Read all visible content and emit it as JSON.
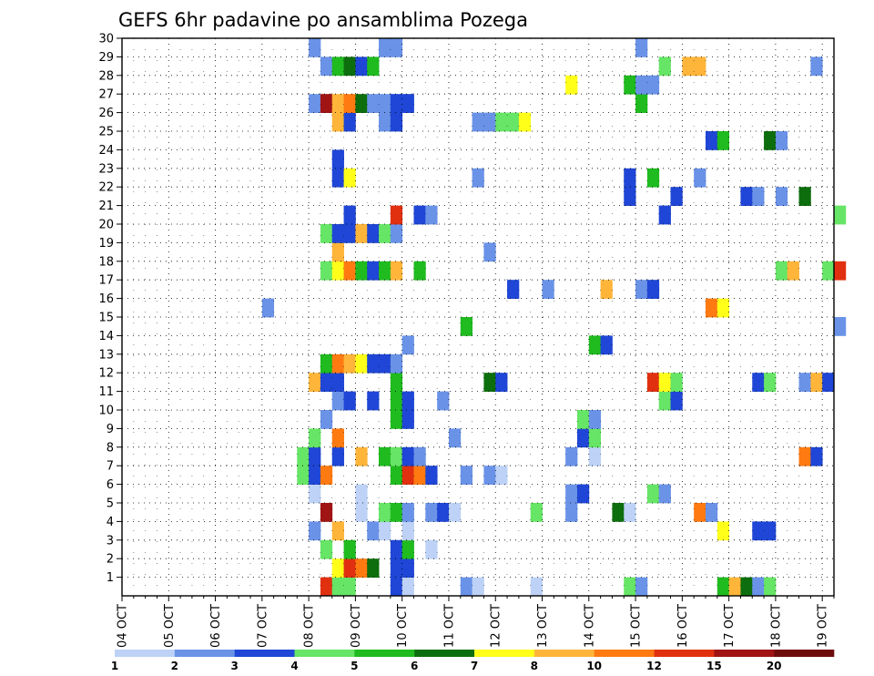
{
  "chart_data": {
    "type": "heatmap",
    "title": "GEFS 6hr padavine po ansamblima Pozega",
    "y_ticks": [
      "1",
      "2",
      "3",
      "4",
      "5",
      "6",
      "7",
      "8",
      "9",
      "10",
      "11",
      "12",
      "13",
      "14",
      "15",
      "16",
      "17",
      "18",
      "19",
      "20",
      "21",
      "22",
      "23",
      "24",
      "25",
      "26",
      "27",
      "28",
      "29",
      "30"
    ],
    "x_ticks": [
      "04 OCT",
      "05 OCT",
      "06 OCT",
      "07 OCT",
      "08 OCT",
      "09 OCT",
      "10 OCT",
      "11 OCT",
      "12 OCT",
      "13 OCT",
      "14 OCT",
      "15 OCT",
      "16 OCT",
      "17 OCT",
      "18 OCT",
      "19 OCT"
    ],
    "x_range": [
      "04 OCT 00h",
      "19 OCT 06h"
    ],
    "time_step_hours": 6,
    "y_range": [
      0,
      30
    ],
    "grid": "dotted",
    "legend_placement": "bottom",
    "colorbar": {
      "ticks": [
        "1",
        "2",
        "3",
        "4",
        "5",
        "6",
        "7",
        "8",
        "10",
        "12",
        "15",
        "20"
      ],
      "colors": [
        "#bdd2f6",
        "#6a93e8",
        "#1f46d6",
        "#66e566",
        "#1fbb1f",
        "#0d6e0d",
        "#ffff1a",
        "#ffb53a",
        "#ff7a10",
        "#e13010",
        "#a01414",
        "#6e0c0c"
      ]
    },
    "cells": [
      [
        1,
        "10-08 06h",
        "red"
      ],
      [
        1,
        "10-08 12h",
        "light-green"
      ],
      [
        1,
        "10-08 18h",
        "light-green"
      ],
      [
        1,
        "10-09 18h",
        "blue"
      ],
      [
        1,
        "10-10 00h",
        "light-blue"
      ],
      [
        1,
        "10-11 06h",
        "medium-blue"
      ],
      [
        1,
        "10-11 12h",
        "light-blue"
      ],
      [
        1,
        "10-12 18h",
        "light-blue"
      ],
      [
        1,
        "10-14 18h",
        "light-green"
      ],
      [
        1,
        "10-15 00h",
        "medium-blue"
      ],
      [
        1,
        "10-16 18h",
        "green"
      ],
      [
        1,
        "10-17 00h",
        "orange-yellow"
      ],
      [
        1,
        "10-17 06h",
        "dark-green"
      ],
      [
        1,
        "10-17 12h",
        "medium-blue"
      ],
      [
        1,
        "10-17 18h",
        "light-green"
      ],
      [
        2,
        "10-08 12h",
        "yellow"
      ],
      [
        2,
        "10-08 18h",
        "red"
      ],
      [
        2,
        "10-09 00h",
        "orange"
      ],
      [
        2,
        "10-09 06h",
        "dark-green"
      ],
      [
        2,
        "10-09 18h",
        "blue"
      ],
      [
        2,
        "10-10 00h",
        "blue"
      ],
      [
        3,
        "10-08 06h",
        "light-green"
      ],
      [
        3,
        "10-08 18h",
        "green"
      ],
      [
        3,
        "10-09 18h",
        "blue"
      ],
      [
        3,
        "10-10 00h",
        "green"
      ],
      [
        3,
        "10-10 12h",
        "light-blue"
      ],
      [
        4,
        "10-08 00h",
        "medium-blue"
      ],
      [
        4,
        "10-08 12h",
        "orange-yellow"
      ],
      [
        4,
        "10-09 06h",
        "medium-blue"
      ],
      [
        4,
        "10-09 12h",
        "light-blue"
      ],
      [
        4,
        "10-10 00h",
        "light-blue"
      ],
      [
        4,
        "10-16 18h",
        "yellow"
      ],
      [
        4,
        "10-17 12h",
        "blue"
      ],
      [
        4,
        "10-17 18h",
        "blue"
      ],
      [
        5,
        "10-08 06h",
        "dark-red"
      ],
      [
        5,
        "10-09 00h",
        "light-blue"
      ],
      [
        5,
        "10-09 12h",
        "light-green"
      ],
      [
        5,
        "10-09 18h",
        "green"
      ],
      [
        5,
        "10-10 00h",
        "medium-blue"
      ],
      [
        5,
        "10-10 12h",
        "medium-blue"
      ],
      [
        5,
        "10-10 18h",
        "blue"
      ],
      [
        5,
        "10-11 00h",
        "light-blue"
      ],
      [
        5,
        "10-12 18h",
        "light-green"
      ],
      [
        5,
        "10-13 12h",
        "medium-blue"
      ],
      [
        5,
        "10-14 12h",
        "dark-green"
      ],
      [
        5,
        "10-14 18h",
        "light-blue"
      ],
      [
        5,
        "10-16 06h",
        "orange"
      ],
      [
        5,
        "10-16 12h",
        "medium-blue"
      ],
      [
        6,
        "10-08 00h",
        "light-blue"
      ],
      [
        6,
        "10-09 00h",
        "light-blue"
      ],
      [
        6,
        "10-13 12h",
        "medium-blue"
      ],
      [
        6,
        "10-13 18h",
        "blue"
      ],
      [
        6,
        "10-15 06h",
        "light-green"
      ],
      [
        6,
        "10-15 12h",
        "medium-blue"
      ],
      [
        7,
        "10-07 18h",
        "light-green"
      ],
      [
        7,
        "10-08 00h",
        "blue"
      ],
      [
        7,
        "10-08 06h",
        "orange"
      ],
      [
        7,
        "10-09 18h",
        "green"
      ],
      [
        7,
        "10-10 00h",
        "red"
      ],
      [
        7,
        "10-10 06h",
        "orange"
      ],
      [
        7,
        "10-10 12h",
        "blue"
      ],
      [
        7,
        "10-11 06h",
        "medium-blue"
      ],
      [
        7,
        "10-11 18h",
        "medium-blue"
      ],
      [
        7,
        "10-12 00h",
        "light-blue"
      ],
      [
        8,
        "10-07 18h",
        "light-green"
      ],
      [
        8,
        "10-08 00h",
        "blue"
      ],
      [
        8,
        "10-08 12h",
        "blue"
      ],
      [
        8,
        "10-09 00h",
        "orange-yellow"
      ],
      [
        8,
        "10-09 12h",
        "green"
      ],
      [
        8,
        "10-09 18h",
        "light-green"
      ],
      [
        8,
        "10-10 00h",
        "blue"
      ],
      [
        8,
        "10-10 06h",
        "medium-blue"
      ],
      [
        8,
        "10-13 12h",
        "medium-blue"
      ],
      [
        8,
        "10-14 00h",
        "light-blue"
      ],
      [
        8,
        "10-18 12h",
        "orange"
      ],
      [
        8,
        "10-18 18h",
        "blue"
      ],
      [
        9,
        "10-08 00h",
        "light-green"
      ],
      [
        9,
        "10-08 12h",
        "orange"
      ],
      [
        9,
        "10-11 00h",
        "medium-blue"
      ],
      [
        9,
        "10-13 18h",
        "blue"
      ],
      [
        9,
        "10-14 00h",
        "light-green"
      ],
      [
        10,
        "10-08 06h",
        "medium-blue"
      ],
      [
        10,
        "10-09 18h",
        "green"
      ],
      [
        10,
        "10-10 00h",
        "blue"
      ],
      [
        10,
        "10-13 18h",
        "light-green"
      ],
      [
        10,
        "10-14 00h",
        "medium-blue"
      ],
      [
        11,
        "10-08 12h",
        "medium-blue"
      ],
      [
        11,
        "10-08 18h",
        "blue"
      ],
      [
        11,
        "10-09 06h",
        "blue"
      ],
      [
        11,
        "10-09 18h",
        "green"
      ],
      [
        11,
        "10-10 00h",
        "blue"
      ],
      [
        11,
        "10-10 18h",
        "medium-blue"
      ],
      [
        11,
        "10-15 12h",
        "light-green"
      ],
      [
        11,
        "10-15 18h",
        "blue"
      ],
      [
        12,
        "10-08 00h",
        "orange-yellow"
      ],
      [
        12,
        "10-08 06h",
        "blue"
      ],
      [
        12,
        "10-08 12h",
        "blue"
      ],
      [
        12,
        "10-09 18h",
        "green"
      ],
      [
        12,
        "10-11 18h",
        "dark-green"
      ],
      [
        12,
        "10-12 00h",
        "blue"
      ],
      [
        12,
        "10-15 06h",
        "red"
      ],
      [
        12,
        "10-15 12h",
        "yellow"
      ],
      [
        12,
        "10-15 18h",
        "light-green"
      ],
      [
        12,
        "10-17 12h",
        "blue"
      ],
      [
        12,
        "10-17 18h",
        "light-green"
      ],
      [
        12,
        "10-18 12h",
        "medium-blue"
      ],
      [
        12,
        "10-18 18h",
        "orange-yellow"
      ],
      [
        12,
        "10-19 00h",
        "blue"
      ],
      [
        13,
        "10-08 06h",
        "green"
      ],
      [
        13,
        "10-08 12h",
        "orange"
      ],
      [
        13,
        "10-08 18h",
        "orange-yellow"
      ],
      [
        13,
        "10-09 00h",
        "yellow"
      ],
      [
        13,
        "10-09 06h",
        "blue"
      ],
      [
        13,
        "10-09 12h",
        "blue"
      ],
      [
        13,
        "10-09 18h",
        "medium-blue"
      ],
      [
        14,
        "10-10 00h",
        "medium-blue"
      ],
      [
        14,
        "10-14 00h",
        "green"
      ],
      [
        14,
        "10-14 06h",
        "blue"
      ],
      [
        15,
        "10-11 06h",
        "green"
      ],
      [
        15,
        "10-19 06h",
        "medium-blue"
      ],
      [
        16,
        "10-07 00h",
        "medium-blue"
      ],
      [
        16,
        "10-16 12h",
        "orange"
      ],
      [
        16,
        "10-16 18h",
        "yellow"
      ],
      [
        17,
        "10-12 06h",
        "blue"
      ],
      [
        17,
        "10-13 00h",
        "medium-blue"
      ],
      [
        17,
        "10-14 06h",
        "orange-yellow"
      ],
      [
        17,
        "10-15 00h",
        "medium-blue"
      ],
      [
        17,
        "10-15 06h",
        "blue"
      ],
      [
        18,
        "10-08 06h",
        "light-green"
      ],
      [
        18,
        "10-08 12h",
        "yellow"
      ],
      [
        18,
        "10-08 18h",
        "orange"
      ],
      [
        18,
        "10-09 00h",
        "green"
      ],
      [
        18,
        "10-09 06h",
        "blue"
      ],
      [
        18,
        "10-09 12h",
        "green"
      ],
      [
        18,
        "10-09 18h",
        "orange-yellow"
      ],
      [
        18,
        "10-10 06h",
        "green"
      ],
      [
        18,
        "10-18 00h",
        "light-green"
      ],
      [
        18,
        "10-18 06h",
        "orange-yellow"
      ],
      [
        18,
        "10-19 00h",
        "light-green"
      ],
      [
        18,
        "10-19 06h",
        "red"
      ],
      [
        19,
        "10-08 12h",
        "orange-yellow"
      ],
      [
        19,
        "10-11 18h",
        "medium-blue"
      ],
      [
        20,
        "10-08 06h",
        "light-green"
      ],
      [
        20,
        "10-08 12h",
        "blue"
      ],
      [
        20,
        "10-08 18h",
        "blue"
      ],
      [
        20,
        "10-09 00h",
        "orange-yellow"
      ],
      [
        20,
        "10-09 06h",
        "blue"
      ],
      [
        20,
        "10-09 12h",
        "light-green"
      ],
      [
        20,
        "10-09 18h",
        "medium-blue"
      ],
      [
        21,
        "10-08 18h",
        "blue"
      ],
      [
        21,
        "10-09 18h",
        "red"
      ],
      [
        21,
        "10-10 06h",
        "blue"
      ],
      [
        21,
        "10-10 12h",
        "medium-blue"
      ],
      [
        21,
        "10-15 12h",
        "blue"
      ],
      [
        21,
        "10-19 06h",
        "light-green"
      ],
      [
        22,
        "10-14 18h",
        "blue"
      ],
      [
        22,
        "10-15 18h",
        "blue"
      ],
      [
        22,
        "10-17 06h",
        "blue"
      ],
      [
        22,
        "10-17 12h",
        "medium-blue"
      ],
      [
        22,
        "10-18 00h",
        "medium-blue"
      ],
      [
        22,
        "10-18 12h",
        "dark-green"
      ],
      [
        23,
        "10-08 12h",
        "blue"
      ],
      [
        23,
        "10-08 18h",
        "yellow"
      ],
      [
        23,
        "10-11 12h",
        "medium-blue"
      ],
      [
        23,
        "10-14 18h",
        "blue"
      ],
      [
        23,
        "10-15 06h",
        "green"
      ],
      [
        23,
        "10-16 06h",
        "medium-blue"
      ],
      [
        24,
        "10-08 12h",
        "blue"
      ],
      [
        25,
        "10-16 12h",
        "blue"
      ],
      [
        25,
        "10-16 18h",
        "green"
      ],
      [
        25,
        "10-17 18h",
        "dark-green"
      ],
      [
        25,
        "10-18 00h",
        "medium-blue"
      ],
      [
        26,
        "10-08 12h",
        "orange-yellow"
      ],
      [
        26,
        "10-08 18h",
        "blue"
      ],
      [
        26,
        "10-09 12h",
        "medium-blue"
      ],
      [
        26,
        "10-09 18h",
        "blue"
      ],
      [
        26,
        "10-11 12h",
        "medium-blue"
      ],
      [
        26,
        "10-11 18h",
        "medium-blue"
      ],
      [
        26,
        "10-12 00h",
        "light-green"
      ],
      [
        26,
        "10-12 06h",
        "light-green"
      ],
      [
        26,
        "10-12 12h",
        "yellow"
      ],
      [
        27,
        "10-08 00h",
        "medium-blue"
      ],
      [
        27,
        "10-08 06h",
        "dark-red"
      ],
      [
        27,
        "10-08 12h",
        "orange-yellow"
      ],
      [
        27,
        "10-08 18h",
        "orange"
      ],
      [
        27,
        "10-09 00h",
        "dark-green"
      ],
      [
        27,
        "10-09 06h",
        "medium-blue"
      ],
      [
        27,
        "10-09 12h",
        "medium-blue"
      ],
      [
        27,
        "10-09 18h",
        "blue"
      ],
      [
        27,
        "10-10 00h",
        "blue"
      ],
      [
        27,
        "10-15 00h",
        "green"
      ],
      [
        28,
        "10-13 12h",
        "yellow"
      ],
      [
        28,
        "10-14 18h",
        "green"
      ],
      [
        28,
        "10-15 00h",
        "medium-blue"
      ],
      [
        28,
        "10-15 06h",
        "medium-blue"
      ],
      [
        29,
        "10-08 06h",
        "medium-blue"
      ],
      [
        29,
        "10-08 12h",
        "green"
      ],
      [
        29,
        "10-08 18h",
        "dark-green"
      ],
      [
        29,
        "10-09 00h",
        "blue"
      ],
      [
        29,
        "10-09 06h",
        "green"
      ],
      [
        29,
        "10-15 12h",
        "light-green"
      ],
      [
        29,
        "10-16 00h",
        "orange-yellow"
      ],
      [
        29,
        "10-16 06h",
        "orange-yellow"
      ],
      [
        29,
        "10-18 18h",
        "medium-blue"
      ],
      [
        30,
        "10-08 00h",
        "medium-blue"
      ],
      [
        30,
        "10-09 12h",
        "medium-blue"
      ],
      [
        30,
        "10-09 18h",
        "medium-blue"
      ],
      [
        30,
        "10-15 00h",
        "medium-blue"
      ]
    ]
  }
}
